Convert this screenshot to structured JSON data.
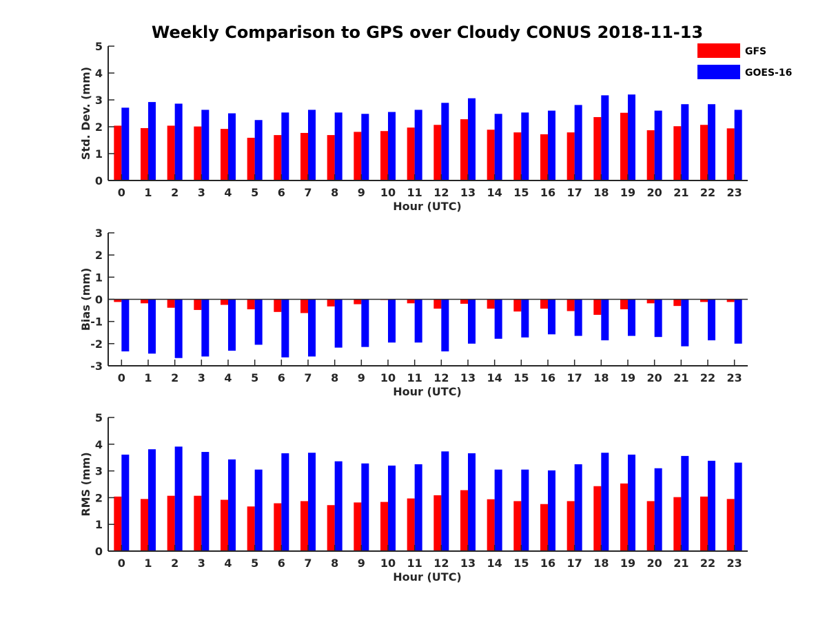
{
  "chart_data": {
    "type": "bar",
    "title": "Weekly Comparison to GPS over Cloudy CONUS 2018-11-13",
    "legend": {
      "placement": "top-right",
      "entries": [
        {
          "name": "GFS",
          "color": "#ff0000"
        },
        {
          "name": "GOES-16",
          "color": "#0000ff"
        }
      ]
    },
    "subplots": [
      {
        "id": "stddev",
        "xlabel": "Hour (UTC)",
        "ylabel": "Std. Dev. (mm)",
        "ylim": [
          0,
          5
        ],
        "yticks": [
          0,
          1,
          2,
          3,
          4,
          5
        ],
        "categories": [
          "0",
          "1",
          "2",
          "3",
          "4",
          "5",
          "6",
          "7",
          "8",
          "9",
          "10",
          "11",
          "12",
          "13",
          "14",
          "15",
          "16",
          "17",
          "18",
          "19",
          "20",
          "21",
          "22",
          "23"
        ],
        "series": [
          {
            "name": "GFS",
            "color": "#ff0000",
            "values": [
              2.04,
              1.95,
              2.04,
              2.01,
              1.92,
              1.59,
              1.69,
              1.77,
              1.69,
              1.81,
              1.84,
              1.97,
              2.07,
              2.28,
              1.89,
              1.79,
              1.72,
              1.79,
              2.36,
              2.52,
              1.87,
              2.02,
              2.07,
              1.94
            ]
          },
          {
            "name": "GOES-16",
            "color": "#0000ff",
            "values": [
              2.71,
              2.92,
              2.86,
              2.63,
              2.5,
              2.25,
              2.53,
              2.63,
              2.53,
              2.48,
              2.55,
              2.63,
              2.89,
              3.06,
              2.48,
              2.53,
              2.6,
              2.81,
              3.17,
              3.2,
              2.6,
              2.84,
              2.84,
              2.63
            ]
          }
        ]
      },
      {
        "id": "bias",
        "xlabel": "Hour (UTC)",
        "ylabel": "Bias (mm)",
        "ylim": [
          -3,
          3
        ],
        "yticks": [
          -3,
          -2,
          -1,
          0,
          1,
          2,
          3
        ],
        "zero_line": true,
        "categories": [
          "0",
          "1",
          "2",
          "3",
          "4",
          "5",
          "6",
          "7",
          "8",
          "9",
          "10",
          "11",
          "12",
          "13",
          "14",
          "15",
          "16",
          "17",
          "18",
          "19",
          "20",
          "21",
          "22",
          "23"
        ],
        "series": [
          {
            "name": "GFS",
            "color": "#ff0000",
            "values": [
              -0.12,
              -0.18,
              -0.38,
              -0.48,
              -0.25,
              -0.45,
              -0.57,
              -0.62,
              -0.32,
              -0.22,
              -0.03,
              -0.18,
              -0.42,
              -0.2,
              -0.42,
              -0.55,
              -0.42,
              -0.53,
              -0.7,
              -0.45,
              -0.18,
              -0.3,
              -0.12,
              -0.12
            ]
          },
          {
            "name": "GOES-16",
            "color": "#0000ff",
            "values": [
              -2.35,
              -2.45,
              -2.65,
              -2.58,
              -2.32,
              -2.05,
              -2.62,
              -2.58,
              -2.18,
              -2.15,
              -1.95,
              -1.95,
              -2.35,
              -2.0,
              -1.78,
              -1.72,
              -1.58,
              -1.65,
              -1.85,
              -1.65,
              -1.7,
              -2.12,
              -1.85,
              -2.0
            ]
          }
        ]
      },
      {
        "id": "rms",
        "xlabel": "Hour (UTC)",
        "ylabel": "RMS (mm)",
        "ylim": [
          0,
          5
        ],
        "yticks": [
          0,
          1,
          2,
          3,
          4,
          5
        ],
        "categories": [
          "0",
          "1",
          "2",
          "3",
          "4",
          "5",
          "6",
          "7",
          "8",
          "9",
          "10",
          "11",
          "12",
          "13",
          "14",
          "15",
          "16",
          "17",
          "18",
          "19",
          "20",
          "21",
          "22",
          "23"
        ],
        "series": [
          {
            "name": "GFS",
            "color": "#ff0000",
            "values": [
              2.04,
              1.95,
              2.07,
              2.07,
              1.92,
              1.67,
              1.79,
              1.87,
              1.72,
              1.82,
              1.84,
              1.97,
              2.09,
              2.28,
              1.94,
              1.87,
              1.76,
              1.87,
              2.43,
              2.53,
              1.87,
              2.02,
              2.04,
              1.95
            ]
          },
          {
            "name": "GOES-16",
            "color": "#0000ff",
            "values": [
              3.61,
              3.81,
              3.91,
              3.71,
              3.43,
              3.05,
              3.66,
              3.68,
              3.36,
              3.28,
              3.2,
              3.25,
              3.73,
              3.66,
              3.05,
              3.05,
              3.02,
              3.25,
              3.68,
              3.61,
              3.1,
              3.56,
              3.38,
              3.31
            ]
          }
        ]
      }
    ]
  }
}
